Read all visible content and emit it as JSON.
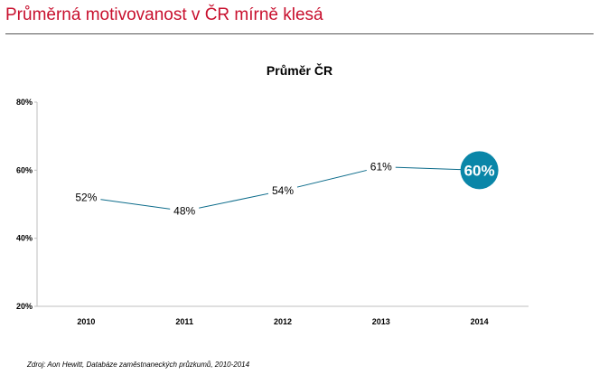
{
  "header": {
    "title": "Průměrná motivovanost v ČR mírně klesá"
  },
  "footer": {
    "source": "Zdroj: Aon Hewitt, Databáze zaměstnaneckých průzkumů, 2010-2014"
  },
  "colors": {
    "title": "#c8102e",
    "line": "#0b6b8a",
    "highlight": "#0a86a8"
  },
  "chart_data": {
    "type": "line",
    "title": "Průměr ČR",
    "xlabel": "",
    "ylabel": "",
    "categories": [
      "2010",
      "2011",
      "2012",
      "2013",
      "2014"
    ],
    "series": [
      {
        "values": [
          52,
          48,
          54,
          61,
          60
        ]
      }
    ],
    "data_labels": [
      "52%",
      "48%",
      "54%",
      "61%",
      "60%"
    ],
    "highlight_index": 4,
    "y_ticks": [
      20,
      40,
      60,
      80
    ],
    "y_tick_labels": [
      "20%",
      "40%",
      "60%",
      "80%"
    ],
    "ylim": [
      20,
      80
    ],
    "grid": false,
    "legend": "none"
  }
}
